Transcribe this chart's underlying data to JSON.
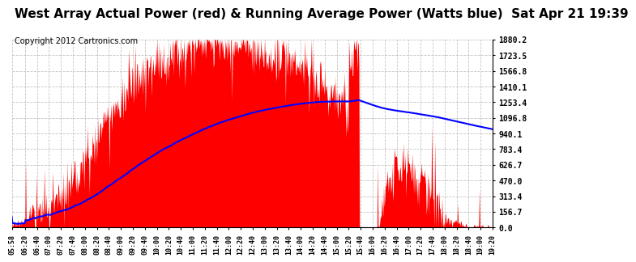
{
  "title": "West Array Actual Power (red) & Running Average Power (Watts blue)  Sat Apr 21 19:39",
  "copyright": "Copyright 2012 Cartronics.com",
  "y_ticks": [
    0.0,
    156.7,
    313.4,
    470.0,
    626.7,
    783.4,
    940.1,
    1096.8,
    1253.4,
    1410.1,
    1566.8,
    1723.5,
    1880.2
  ],
  "x_tick_labels": [
    "05:58",
    "06:20",
    "06:40",
    "07:00",
    "07:20",
    "07:40",
    "08:00",
    "08:20",
    "08:40",
    "09:00",
    "09:20",
    "09:40",
    "10:00",
    "10:20",
    "10:40",
    "11:00",
    "11:20",
    "11:40",
    "12:00",
    "12:20",
    "12:40",
    "13:00",
    "13:20",
    "13:40",
    "14:00",
    "14:20",
    "14:40",
    "15:00",
    "15:20",
    "15:40",
    "16:00",
    "16:20",
    "16:40",
    "17:00",
    "17:20",
    "17:40",
    "18:00",
    "18:20",
    "18:40",
    "19:00",
    "19:20"
  ],
  "background_color": "#ffffff",
  "plot_bg_color": "#ffffff",
  "grid_color": "#aaaaaa",
  "actual_color": "#ff0000",
  "avg_color": "#0000ff",
  "title_fontsize": 11,
  "copyright_fontsize": 7,
  "ymax": 1880.2,
  "ymin": 0.0
}
